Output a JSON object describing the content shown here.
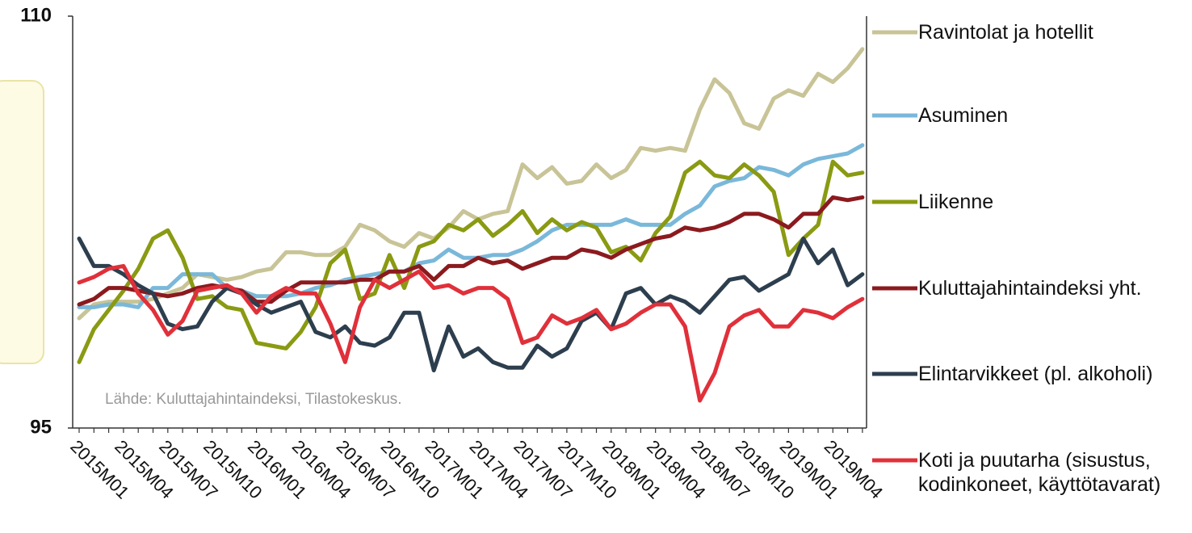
{
  "chart_data": {
    "type": "line",
    "note": "Lähde: Kuluttajahintaindeksi, Tilastokeskus.",
    "categories": [
      "2015M01",
      null,
      null,
      "2015M04",
      null,
      null,
      "2015M07",
      null,
      null,
      "2015M10",
      null,
      null,
      "2016M01",
      null,
      null,
      "2016M04",
      null,
      null,
      "2016M07",
      null,
      null,
      "2016M10",
      null,
      null,
      "2017M01",
      null,
      null,
      "2017M04",
      null,
      null,
      "2017M07",
      null,
      null,
      "2017M10",
      null,
      null,
      "2018M01",
      null,
      null,
      "2018M04",
      null,
      null,
      "2018M07",
      null,
      null,
      "2018M10",
      null,
      null,
      "2019M01",
      null,
      null,
      "2019M04",
      null,
      null
    ],
    "ylim": [
      95,
      110
    ],
    "yticks": [
      95,
      110
    ],
    "grid": false,
    "legend": "right",
    "series": [
      {
        "name": "Ravintolat ja hotellit",
        "color": "#c8c497",
        "values": [
          99.0,
          99.5,
          99.6,
          99.6,
          99.6,
          99.7,
          99.9,
          100.1,
          100.6,
          100.5,
          100.4,
          100.5,
          100.7,
          100.8,
          101.4,
          101.4,
          101.3,
          101.3,
          101.6,
          102.4,
          102.2,
          101.8,
          101.6,
          102.1,
          101.9,
          102.3,
          102.9,
          102.6,
          102.8,
          102.9,
          104.6,
          104.1,
          104.5,
          103.9,
          104.0,
          104.6,
          104.1,
          104.4,
          105.2,
          105.1,
          105.2,
          105.1,
          106.6,
          107.7,
          107.2,
          106.1,
          105.9,
          107.0,
          107.3,
          107.1,
          107.9,
          107.6,
          108.1,
          108.8
        ]
      },
      {
        "name": "Asuminen",
        "color": "#7ab8da",
        "values": [
          99.4,
          99.4,
          99.5,
          99.5,
          99.4,
          100.1,
          100.1,
          100.6,
          100.6,
          100.6,
          100.1,
          100.0,
          99.8,
          99.8,
          99.8,
          99.9,
          100.1,
          100.2,
          100.4,
          100.5,
          100.6,
          100.7,
          100.7,
          101.0,
          101.1,
          101.5,
          101.2,
          101.2,
          101.3,
          101.3,
          101.5,
          101.8,
          102.2,
          102.4,
          102.4,
          102.4,
          102.4,
          102.6,
          102.4,
          102.4,
          102.4,
          102.8,
          103.1,
          103.8,
          104.0,
          104.1,
          104.5,
          104.4,
          104.2,
          104.6,
          104.8,
          104.9,
          105.0,
          105.3
        ]
      },
      {
        "name": "Liikenne",
        "color": "#8a9a12",
        "values": [
          97.4,
          98.6,
          99.3,
          100.0,
          100.8,
          101.9,
          102.2,
          101.2,
          99.7,
          99.8,
          99.4,
          99.3,
          98.1,
          98.0,
          97.9,
          98.5,
          99.4,
          101.0,
          101.5,
          99.7,
          99.9,
          101.3,
          100.1,
          101.6,
          101.8,
          102.4,
          102.2,
          102.6,
          102.0,
          102.4,
          102.9,
          102.1,
          102.6,
          102.2,
          102.5,
          102.3,
          101.4,
          101.6,
          101.1,
          102.1,
          102.7,
          104.3,
          104.7,
          104.2,
          104.1,
          104.6,
          104.2,
          103.6,
          101.3,
          101.9,
          102.4,
          104.7,
          104.2,
          104.3
        ]
      },
      {
        "name": "Kuluttajahintaindeksi yht.",
        "color": "#8b1a1f",
        "values": [
          99.5,
          99.7,
          100.1,
          100.1,
          100.0,
          99.9,
          99.8,
          99.9,
          100.1,
          100.2,
          100.1,
          100.0,
          99.6,
          99.6,
          100.0,
          100.3,
          100.3,
          100.3,
          100.3,
          100.4,
          100.4,
          100.7,
          100.7,
          100.9,
          100.4,
          100.9,
          100.9,
          101.2,
          101.0,
          101.1,
          100.8,
          101.0,
          101.2,
          101.2,
          101.5,
          101.4,
          101.2,
          101.5,
          101.7,
          101.9,
          102.0,
          102.3,
          102.2,
          102.3,
          102.5,
          102.8,
          102.8,
          102.6,
          102.3,
          102.8,
          102.8,
          103.4,
          103.3,
          103.4
        ]
      },
      {
        "name": "Elintarvikkeet (pl. alkoholi)",
        "color": "#2d3e4e",
        "values": [
          101.9,
          100.9,
          100.9,
          100.6,
          100.2,
          99.9,
          98.8,
          98.6,
          98.7,
          99.6,
          100.1,
          99.9,
          99.5,
          99.2,
          99.4,
          99.6,
          98.5,
          98.3,
          98.7,
          98.1,
          98.0,
          98.3,
          99.2,
          99.2,
          97.1,
          98.7,
          97.6,
          97.9,
          97.4,
          97.2,
          97.2,
          98.0,
          97.6,
          97.9,
          98.9,
          99.2,
          98.6,
          99.9,
          100.1,
          99.5,
          99.8,
          99.6,
          99.2,
          99.8,
          100.4,
          100.5,
          100.0,
          100.3,
          100.6,
          101.9,
          101.0,
          101.5,
          100.2,
          100.6
        ]
      },
      {
        "name": "Koti ja puutarha (sisustus, kodinkoneet, käyttötavarat)",
        "color": "#e0303a",
        "values": [
          100.3,
          100.5,
          100.8,
          100.9,
          99.9,
          99.3,
          98.4,
          98.9,
          100.0,
          100.1,
          100.2,
          99.9,
          99.2,
          99.8,
          100.1,
          99.9,
          99.9,
          98.8,
          97.4,
          99.4,
          100.4,
          100.1,
          100.4,
          100.7,
          100.1,
          100.2,
          99.9,
          100.1,
          100.1,
          99.7,
          98.1,
          98.3,
          99.1,
          98.8,
          99.0,
          99.3,
          98.6,
          98.8,
          99.2,
          99.5,
          99.5,
          98.7,
          96.0,
          97.0,
          98.7,
          99.1,
          99.3,
          98.7,
          98.7,
          99.3,
          99.2,
          99.0,
          99.4,
          99.7
        ]
      }
    ]
  }
}
